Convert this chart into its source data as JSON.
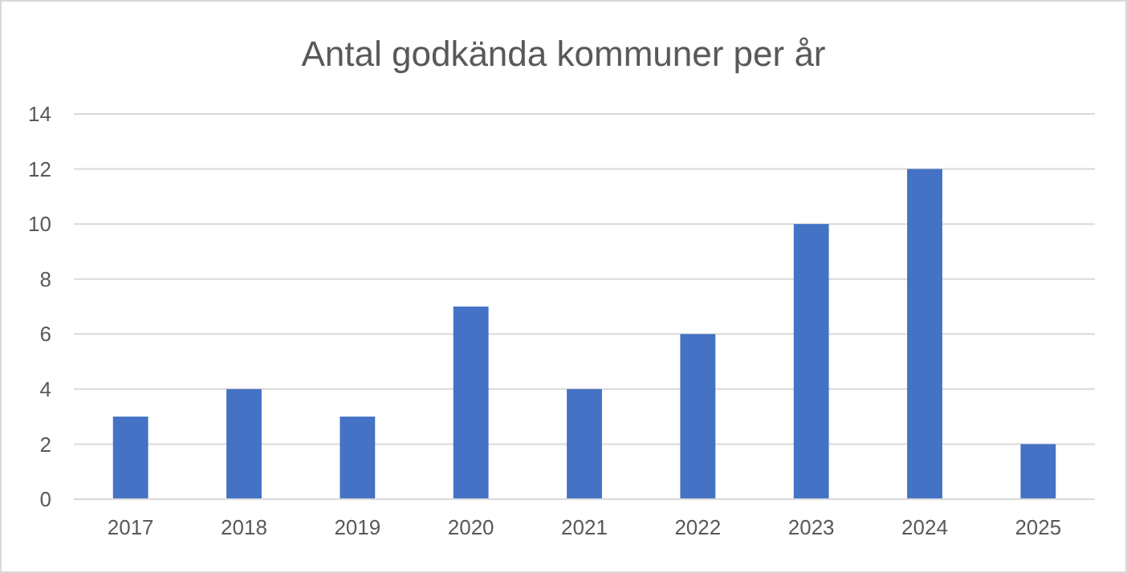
{
  "chart_data": {
    "type": "bar",
    "title": "Antal godkända kommuner per år",
    "categories": [
      "2017",
      "2018",
      "2019",
      "2020",
      "2021",
      "2022",
      "2023",
      "2024",
      "2025"
    ],
    "values": [
      3,
      4,
      3,
      7,
      4,
      6,
      10,
      12,
      2
    ],
    "color": "#4472c4",
    "ylim": [
      0,
      14
    ],
    "yticks": [
      0,
      2,
      4,
      6,
      8,
      10,
      12,
      14
    ],
    "grid": "y"
  }
}
